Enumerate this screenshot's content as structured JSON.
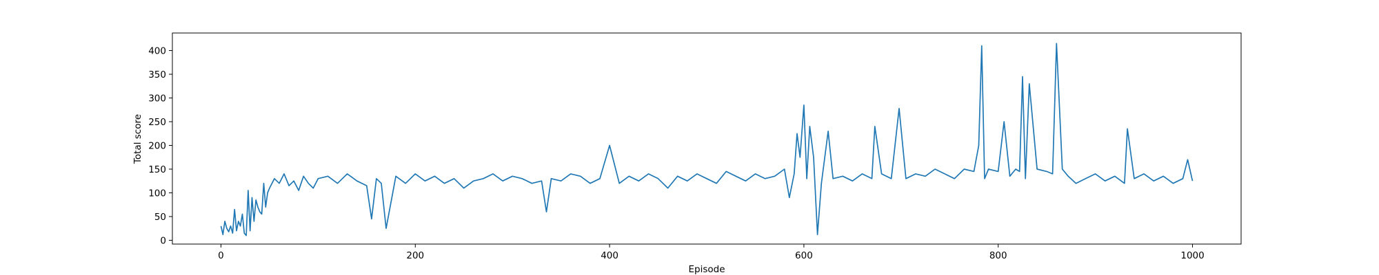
{
  "chart_data": {
    "type": "line",
    "title": "",
    "xlabel": "Episode",
    "ylabel": "Total score",
    "xlim": [
      -50,
      1050
    ],
    "ylim": [
      -8,
      437
    ],
    "xticks": [
      0,
      200,
      400,
      600,
      800,
      1000
    ],
    "yticks": [
      0,
      50,
      100,
      150,
      200,
      250,
      300,
      350,
      400
    ],
    "grid": false,
    "color": "#1f77b4",
    "series": [
      {
        "x": [
          0,
          2,
          4,
          6,
          8,
          10,
          12,
          14,
          16,
          18,
          20,
          22,
          24,
          26,
          28,
          30,
          32,
          34,
          36,
          38,
          40,
          42,
          44,
          46,
          48,
          50,
          55,
          60,
          65,
          70,
          75,
          80,
          85,
          90,
          95,
          100,
          110,
          120,
          130,
          140,
          150,
          155,
          160,
          165,
          170,
          180,
          190,
          200,
          210,
          220,
          230,
          240,
          250,
          260,
          270,
          280,
          290,
          300,
          310,
          320,
          330,
          335,
          340,
          350,
          360,
          370,
          380,
          390,
          400,
          410,
          420,
          430,
          440,
          450,
          460,
          470,
          480,
          490,
          500,
          510,
          520,
          530,
          540,
          550,
          560,
          570,
          580,
          585,
          590,
          593,
          596,
          600,
          603,
          606,
          610,
          614,
          618,
          625,
          630,
          640,
          650,
          660,
          670,
          673,
          680,
          690,
          698,
          705,
          715,
          725,
          735,
          745,
          755,
          765,
          775,
          780,
          783,
          786,
          790,
          800,
          806,
          812,
          818,
          822,
          825,
          828,
          832,
          840,
          850,
          856,
          860,
          866,
          872,
          880,
          890,
          900,
          910,
          920,
          930,
          933,
          940,
          950,
          960,
          970,
          980,
          990,
          995,
          1000
        ],
        "y": [
          30,
          12,
          40,
          25,
          18,
          30,
          15,
          65,
          20,
          40,
          30,
          55,
          15,
          10,
          105,
          20,
          90,
          40,
          85,
          70,
          60,
          55,
          120,
          70,
          100,
          110,
          130,
          120,
          140,
          115,
          125,
          105,
          135,
          120,
          110,
          130,
          135,
          120,
          140,
          125,
          115,
          45,
          130,
          120,
          25,
          135,
          120,
          140,
          125,
          135,
          120,
          130,
          110,
          125,
          130,
          140,
          125,
          135,
          130,
          120,
          125,
          60,
          130,
          125,
          140,
          135,
          120,
          130,
          200,
          120,
          135,
          125,
          140,
          130,
          110,
          135,
          125,
          140,
          130,
          120,
          145,
          135,
          125,
          140,
          130,
          135,
          150,
          90,
          140,
          225,
          175,
          285,
          130,
          240,
          175,
          12,
          120,
          230,
          130,
          135,
          125,
          140,
          130,
          240,
          140,
          130,
          278,
          130,
          140,
          135,
          150,
          140,
          130,
          150,
          145,
          200,
          410,
          130,
          150,
          145,
          250,
          135,
          150,
          145,
          345,
          130,
          330,
          150,
          145,
          140,
          415,
          150,
          135,
          120,
          130,
          140,
          125,
          135,
          120,
          235,
          130,
          140,
          125,
          135,
          120,
          130,
          170,
          125
        ]
      }
    ]
  }
}
